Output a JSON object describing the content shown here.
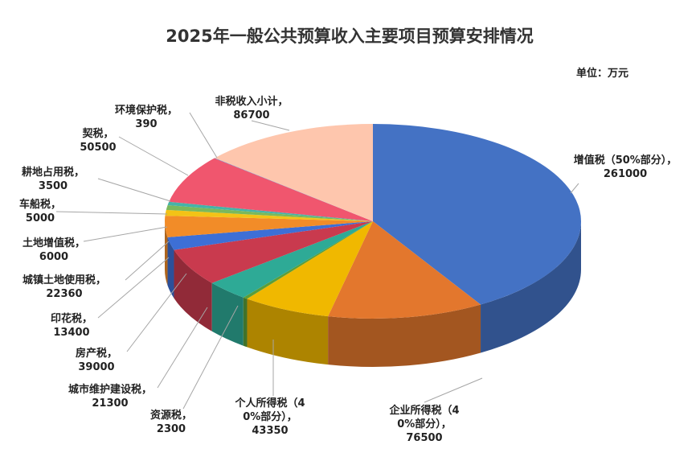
{
  "chart_data": {
    "type": "pie",
    "title": "2025年一般公共预算收入主要项目预算安排情况",
    "unit_label": "单位：万元",
    "slices": [
      {
        "name": "增值税（50%部分），",
        "value": 261000,
        "value_text": "261000",
        "color": "#4472c4"
      },
      {
        "name": "企业所得税（40%部分），",
        "value": 76500,
        "value_text": "76500",
        "color": "#e3772d"
      },
      {
        "name": "个人所得税（40%部分），",
        "value": 43350,
        "value_text": "43350",
        "color": "#f0b800"
      },
      {
        "name": "资源税，",
        "value": 2300,
        "value_text": "2300",
        "color": "#5a9e3a"
      },
      {
        "name": "城市维护建设税，",
        "value": 21300,
        "value_text": "21300",
        "color": "#2eaa96"
      },
      {
        "name": "房产税，",
        "value": 39000,
        "value_text": "39000",
        "color": "#c93a4e"
      },
      {
        "name": "印花税，",
        "value": 13400,
        "value_text": "13400",
        "color": "#3d6fd6"
      },
      {
        "name": "城镇土地使用税，",
        "value": 22360,
        "value_text": "22360",
        "color": "#f28c28"
      },
      {
        "name": "土地增值税，",
        "value": 6000,
        "value_text": "6000",
        "color": "#f3c316"
      },
      {
        "name": "车船税，",
        "value": 5000,
        "value_text": "5000",
        "color": "#7ab85c"
      },
      {
        "name": "耕地占用税，",
        "value": 3500,
        "value_text": "3500",
        "color": "#45b3a8"
      },
      {
        "name": "契税，",
        "value": 50500,
        "value_text": "50500",
        "color": "#f0566e"
      },
      {
        "name": "环境保护税，",
        "value": 390,
        "value_text": "390",
        "color": "#4d7fd6"
      },
      {
        "name": "非税收入小计，",
        "value": 86700,
        "value_text": "86700",
        "color": "#fec6ad"
      }
    ]
  }
}
